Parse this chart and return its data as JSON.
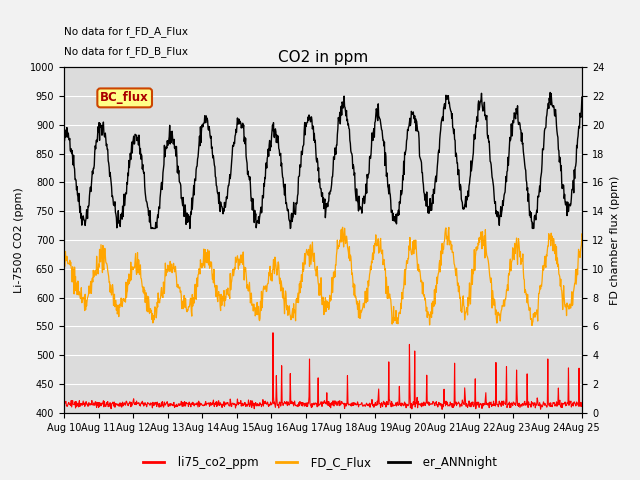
{
  "title": "CO2 in ppm",
  "ylabel_left": "Li-7500 CO2 (ppm)",
  "ylabel_right": "FD chamber flux (ppm)",
  "annotation_line1": "No data for f_FD_A_Flux",
  "annotation_line2": "No data for f_FD_B_Flux",
  "legend_box_label": "BC_flux",
  "xlim_days": [
    10,
    25
  ],
  "ylim_left": [
    400,
    1000
  ],
  "ylim_right": [
    0,
    24
  ],
  "xtick_labels": [
    "Aug 10",
    "Aug 11",
    "Aug 12",
    "Aug 13",
    "Aug 14",
    "Aug 15",
    "Aug 16",
    "Aug 17",
    "Aug 18",
    "Aug 19",
    "Aug 20",
    "Aug 21",
    "Aug 22",
    "Aug 23",
    "Aug 24",
    "Aug 25"
  ],
  "yticks_left": [
    400,
    450,
    500,
    550,
    600,
    650,
    700,
    750,
    800,
    850,
    900,
    950,
    1000
  ],
  "yticks_right": [
    0,
    2,
    4,
    6,
    8,
    10,
    12,
    14,
    16,
    18,
    20,
    22,
    24
  ],
  "color_li75": "#ff0000",
  "color_FD_C": "#ffa500",
  "color_er": "#000000",
  "bg_color": "#dcdcdc",
  "grid_color": "#ffffff",
  "linewidth_li75": 0.8,
  "linewidth_FD_C": 0.9,
  "linewidth_er": 1.0
}
